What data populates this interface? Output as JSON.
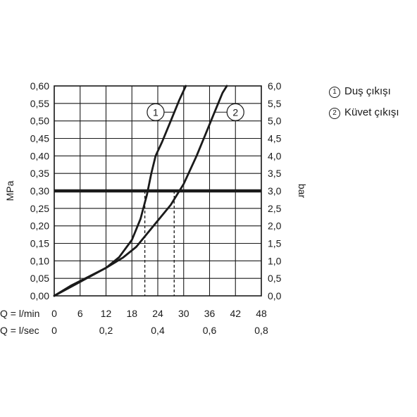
{
  "chart_data": {
    "type": "line",
    "x_rows": [
      {
        "label": "Q = l/min",
        "ticks": [
          "0",
          "6",
          "12",
          "18",
          "24",
          "30",
          "36",
          "42",
          "48"
        ]
      },
      {
        "label": "Q = l/sec",
        "ticks": [
          "0",
          "0,2",
          "0,4",
          "0,6",
          "0,8"
        ]
      }
    ],
    "y_left": {
      "label": "MPa",
      "ticks": [
        "0,00",
        "0,05",
        "0,10",
        "0,15",
        "0,20",
        "0,25",
        "0,30",
        "0,35",
        "0,40",
        "0,45",
        "0,50",
        "0,55",
        "0,60"
      ]
    },
    "y_right": {
      "label": "bar",
      "ticks": [
        "0,0",
        "0,5",
        "1,0",
        "1,5",
        "2,0",
        "2,5",
        "3,0",
        "3,5",
        "4,0",
        "4,5",
        "5,0",
        "5,5",
        "6,0"
      ]
    },
    "xlim": [
      0,
      48
    ],
    "ylim": [
      0,
      0.6
    ],
    "grid": true,
    "reference_line": {
      "y": 0.3
    },
    "series": [
      {
        "marker": "1",
        "name": "Duş çıkışı",
        "points": [
          [
            0,
            0
          ],
          [
            4,
            0.03
          ],
          [
            8,
            0.055
          ],
          [
            12,
            0.08
          ],
          [
            15,
            0.11
          ],
          [
            18,
            0.16
          ],
          [
            20,
            0.22
          ],
          [
            21.5,
            0.29
          ],
          [
            22.5,
            0.35
          ],
          [
            23.5,
            0.4
          ],
          [
            25,
            0.44
          ],
          [
            27,
            0.5
          ],
          [
            29,
            0.56
          ],
          [
            30.5,
            0.6
          ]
        ],
        "drop_x": 21
      }
    ],
    "series_2": {
      "marker": "2",
      "name": "Küvet çıkışı",
      "points": [
        [
          0,
          0
        ],
        [
          6,
          0.04
        ],
        [
          12,
          0.08
        ],
        [
          16,
          0.11
        ],
        [
          19,
          0.14
        ],
        [
          23,
          0.2
        ],
        [
          27,
          0.26
        ],
        [
          30,
          0.32
        ],
        [
          33,
          0.4
        ],
        [
          35,
          0.46
        ],
        [
          37,
          0.52
        ],
        [
          39,
          0.58
        ],
        [
          40,
          0.6
        ]
      ],
      "drop_x": 27.8
    },
    "callouts": [
      {
        "marker": "1",
        "x": 23.5,
        "y": 0.525
      },
      {
        "marker": "2",
        "x": 42,
        "y": 0.525
      }
    ]
  },
  "legend": [
    {
      "marker": "1",
      "label": "Duş çıkışı"
    },
    {
      "marker": "2",
      "label": "Küvet çıkışı"
    }
  ]
}
